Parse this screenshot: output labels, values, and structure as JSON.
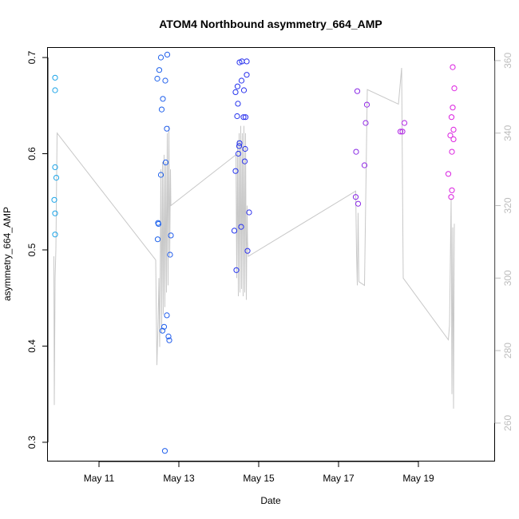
{
  "chart_data": {
    "type": "scatter",
    "title": "ATOM4 Northbound asymmetry_664_AMP",
    "xlabel": "Date",
    "ylabel": "asymmetry_664_AMP",
    "x_ticks": [
      {
        "label": "May 11",
        "day": 11
      },
      {
        "label": "May 13",
        "day": 13
      },
      {
        "label": "May 15",
        "day": 15
      },
      {
        "label": "May 17",
        "day": 17
      },
      {
        "label": "May 19",
        "day": 19
      }
    ],
    "xlim_days": [
      9.72,
      20.92
    ],
    "y_ticks": [
      0.3,
      0.4,
      0.5,
      0.6,
      0.7
    ],
    "ylim": [
      0.28,
      0.71
    ],
    "y2_ticks": [
      260,
      280,
      300,
      320,
      340,
      360
    ],
    "y2lim": [
      249.4,
      363.5
    ],
    "grid": false,
    "legend": "none",
    "colors": {
      "axis": "#000000",
      "right_axis": "#bdbdbd",
      "line": "#c8c8c8",
      "points_start": "#1ea8e8",
      "points_mid": "#2233ee",
      "points_end": "#e020e0"
    },
    "series": [
      {
        "type": "points",
        "points": [
          [
            9.9,
            0.679
          ],
          [
            9.9,
            0.666
          ],
          [
            9.9,
            0.586
          ],
          [
            9.93,
            0.575
          ],
          [
            9.88,
            0.552
          ],
          [
            9.9,
            0.538
          ],
          [
            9.9,
            0.516
          ],
          [
            12.46,
            0.678
          ],
          [
            12.51,
            0.687
          ],
          [
            12.55,
            0.7
          ],
          [
            12.66,
            0.676
          ],
          [
            12.71,
            0.703
          ],
          [
            12.6,
            0.657
          ],
          [
            12.57,
            0.646
          ],
          [
            12.7,
            0.626
          ],
          [
            12.67,
            0.591
          ],
          [
            12.55,
            0.578
          ],
          [
            12.48,
            0.528
          ],
          [
            12.49,
            0.527
          ],
          [
            12.8,
            0.515
          ],
          [
            12.47,
            0.511
          ],
          [
            12.78,
            0.495
          ],
          [
            12.7,
            0.432
          ],
          [
            12.63,
            0.42
          ],
          [
            12.59,
            0.416
          ],
          [
            12.74,
            0.41
          ],
          [
            12.76,
            0.406
          ],
          [
            12.65,
            0.291
          ],
          [
            14.52,
            0.695
          ],
          [
            14.58,
            0.696
          ],
          [
            14.7,
            0.696
          ],
          [
            14.57,
            0.676
          ],
          [
            14.7,
            0.682
          ],
          [
            14.47,
            0.67
          ],
          [
            14.42,
            0.664
          ],
          [
            14.63,
            0.666
          ],
          [
            14.48,
            0.652
          ],
          [
            14.46,
            0.639
          ],
          [
            14.62,
            0.638
          ],
          [
            14.67,
            0.638
          ],
          [
            14.52,
            0.611
          ],
          [
            14.51,
            0.608
          ],
          [
            14.66,
            0.605
          ],
          [
            14.49,
            0.6
          ],
          [
            14.65,
            0.592
          ],
          [
            14.42,
            0.582
          ],
          [
            14.76,
            0.539
          ],
          [
            14.56,
            0.524
          ],
          [
            14.39,
            0.52
          ],
          [
            14.72,
            0.499
          ],
          [
            14.44,
            0.479
          ],
          [
            17.47,
            0.665
          ],
          [
            17.71,
            0.651
          ],
          [
            17.68,
            0.632
          ],
          [
            17.44,
            0.602
          ],
          [
            17.65,
            0.588
          ],
          [
            17.43,
            0.555
          ],
          [
            17.49,
            0.548
          ],
          [
            18.55,
            0.623
          ],
          [
            18.6,
            0.623
          ],
          [
            18.65,
            0.632
          ],
          [
            19.86,
            0.69
          ],
          [
            19.9,
            0.668
          ],
          [
            19.86,
            0.648
          ],
          [
            19.83,
            0.638
          ],
          [
            19.88,
            0.625
          ],
          [
            19.8,
            0.619
          ],
          [
            19.88,
            0.615
          ],
          [
            19.84,
            0.602
          ],
          [
            19.75,
            0.579
          ],
          [
            19.84,
            0.562
          ],
          [
            19.82,
            0.555
          ]
        ]
      },
      {
        "type": "line",
        "axis": "right",
        "points": [
          [
            9.87,
            306
          ],
          [
            9.88,
            265
          ],
          [
            9.9,
            300
          ],
          [
            9.92,
            308
          ],
          [
            9.95,
            340
          ],
          [
            12.42,
            305
          ],
          [
            12.45,
            276
          ],
          [
            12.48,
            288
          ],
          [
            12.5,
            300
          ],
          [
            12.52,
            281
          ],
          [
            12.55,
            330
          ],
          [
            12.57,
            285
          ],
          [
            12.59,
            332
          ],
          [
            12.61,
            290
          ],
          [
            12.63,
            334
          ],
          [
            12.65,
            292
          ],
          [
            12.67,
            332
          ],
          [
            12.69,
            296
          ],
          [
            12.71,
            340
          ],
          [
            12.73,
            298
          ],
          [
            12.75,
            342
          ],
          [
            12.77,
            306
          ],
          [
            12.79,
            330
          ],
          [
            12.8,
            320
          ],
          [
            14.43,
            334
          ],
          [
            14.45,
            300
          ],
          [
            14.47,
            338
          ],
          [
            14.49,
            295
          ],
          [
            14.51,
            340
          ],
          [
            14.53,
            296
          ],
          [
            14.55,
            342
          ],
          [
            14.57,
            297
          ],
          [
            14.59,
            340
          ],
          [
            14.61,
            295
          ],
          [
            14.63,
            342
          ],
          [
            14.65,
            296
          ],
          [
            14.67,
            340
          ],
          [
            14.69,
            294
          ],
          [
            14.71,
            320
          ],
          [
            14.72,
            310
          ],
          [
            14.74,
            306
          ],
          [
            17.43,
            324
          ],
          [
            17.45,
            307
          ],
          [
            17.47,
            298
          ],
          [
            17.49,
            318
          ],
          [
            17.51,
            299
          ],
          [
            17.65,
            298
          ],
          [
            17.72,
            352
          ],
          [
            18.5,
            348
          ],
          [
            18.58,
            358
          ],
          [
            18.62,
            300
          ],
          [
            19.75,
            283
          ],
          [
            19.78,
            287
          ],
          [
            19.82,
            322
          ],
          [
            19.84,
            268
          ],
          [
            19.86,
            314
          ],
          [
            19.88,
            264
          ],
          [
            19.9,
            315
          ]
        ]
      }
    ]
  }
}
